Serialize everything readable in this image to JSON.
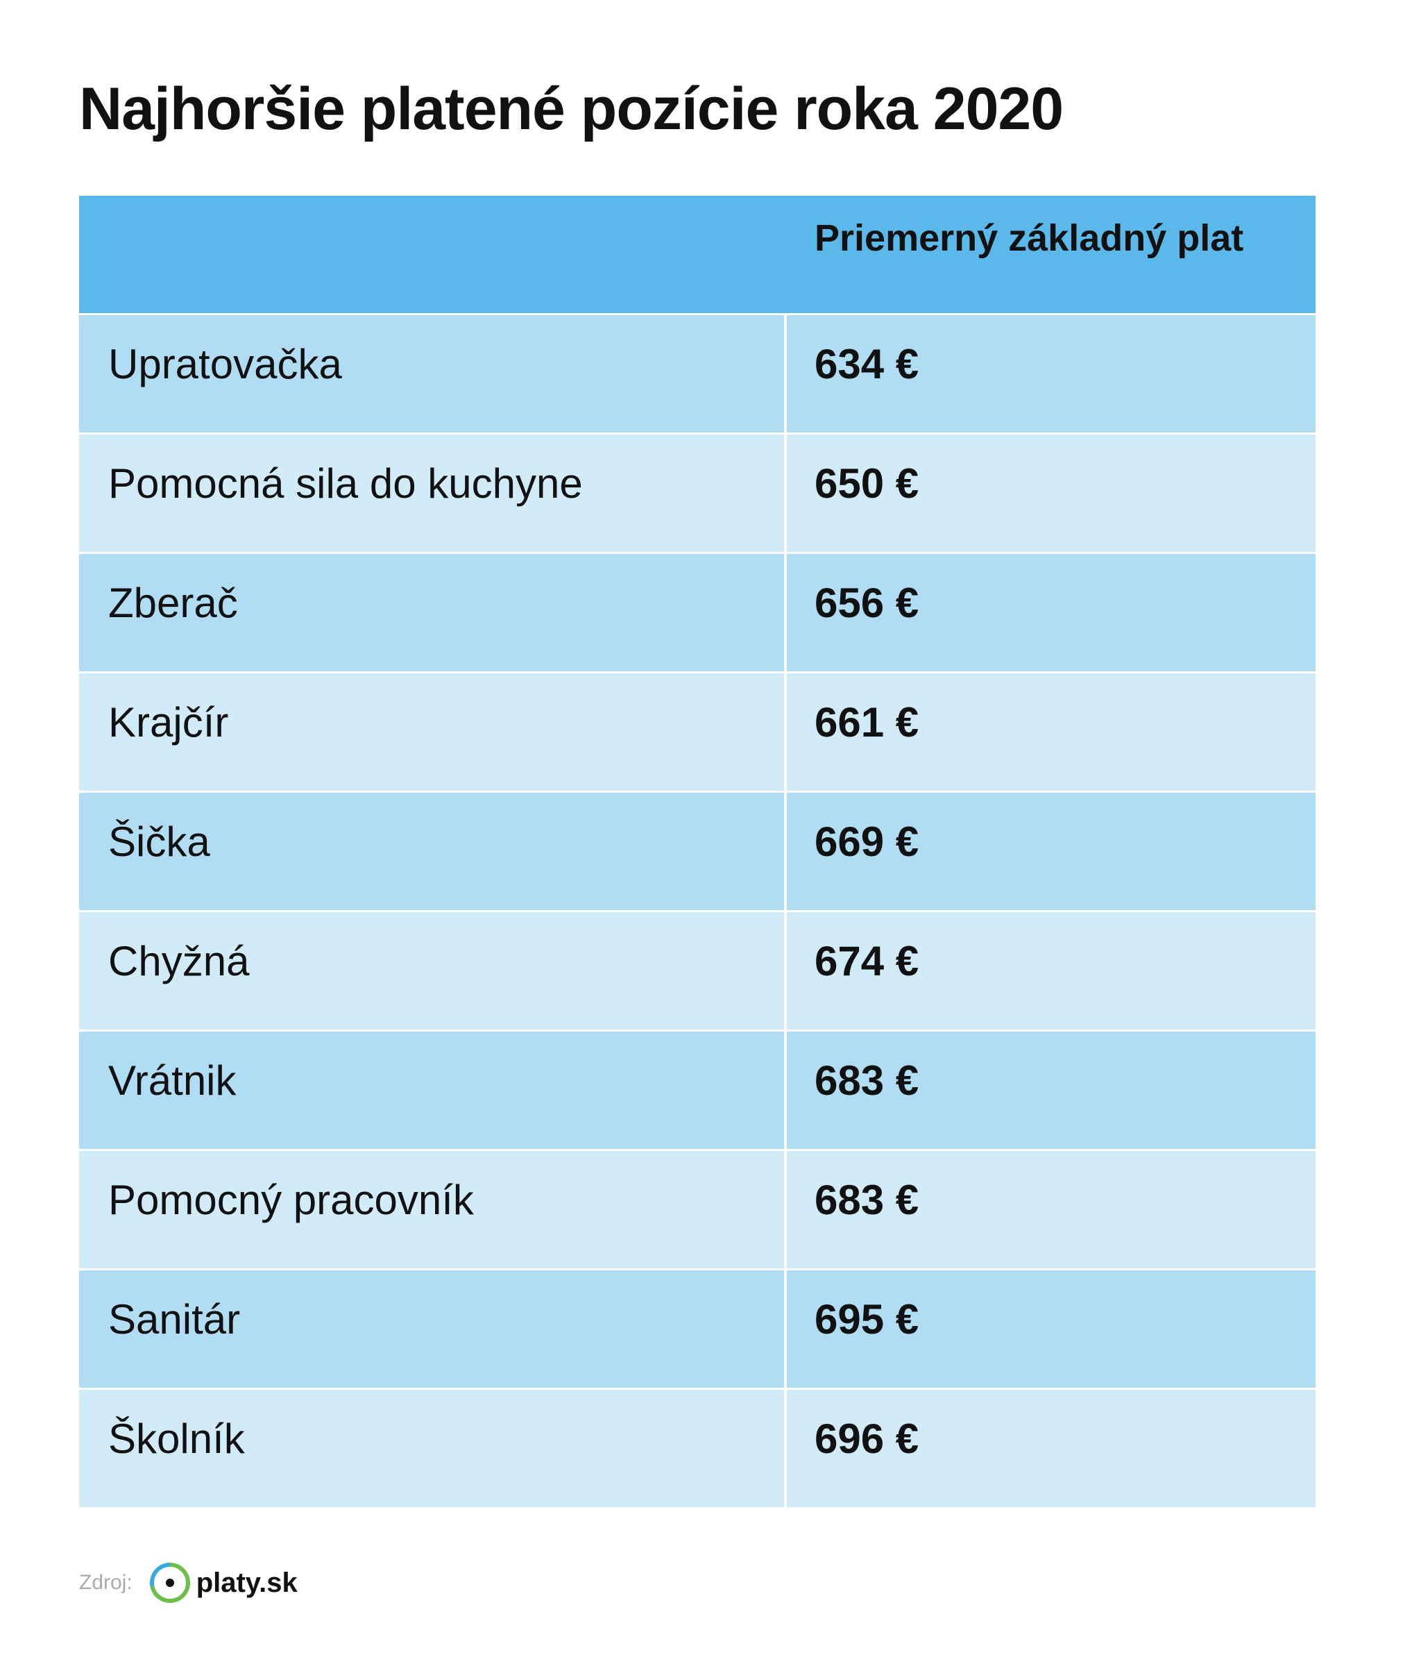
{
  "title": "Najhoršie platené pozície roka 2020",
  "table": {
    "header": "Priemerný základný plat",
    "rows": [
      [
        "Upratovačka",
        "634 €"
      ],
      [
        "Pomocná sila do kuchyne",
        "650 €"
      ],
      [
        "Zberač",
        "656 €"
      ],
      [
        "Krajčír",
        "661 €"
      ],
      [
        "Šička",
        "669 €"
      ],
      [
        "Chyžná",
        "674 €"
      ],
      [
        "Vrátnik",
        "683 €"
      ],
      [
        "Pomocný pracovník",
        "683 €"
      ],
      [
        "Sanitár",
        "695 €"
      ],
      [
        "Školník",
        "696 €"
      ]
    ]
  },
  "footer": {
    "source_label": "Zdroj:",
    "logo_text": "platy.sk"
  }
}
